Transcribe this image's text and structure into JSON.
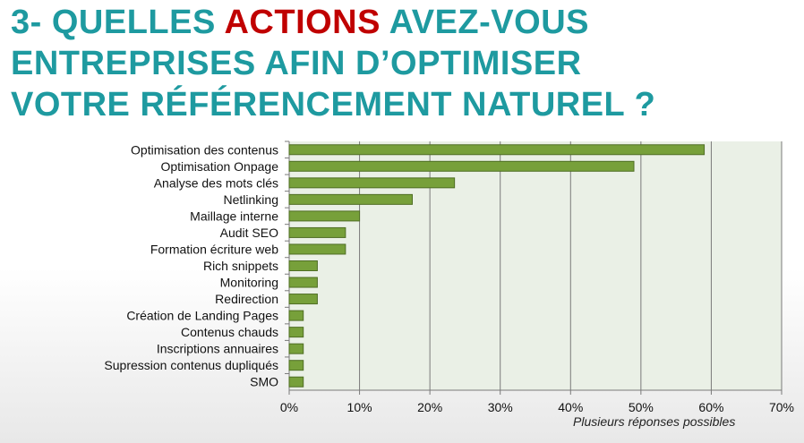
{
  "title": {
    "part1": "3- QUELLES ",
    "accent": "ACTIONS",
    "part2": " AVEZ-VOUS",
    "line2": "ENTREPRISES AFIN D’OPTIMISER",
    "line3": "VOTRE RÉFÉRENCEMENT NATUREL ?"
  },
  "note": "Plusieurs réponses possibles",
  "colors": {
    "title": "#1e9aa0",
    "accent": "#c00000",
    "bar_fill": "#77a03a",
    "bar_stroke": "#4f6e24",
    "plot_bg": "#eaf0e6"
  },
  "chart_data": {
    "type": "bar",
    "orientation": "horizontal",
    "categories": [
      "Optimisation des contenus",
      "Optimisation Onpage",
      "Analyse des mots clés",
      "Netlinking",
      "Maillage interne",
      "Audit SEO",
      "Formation écriture web",
      "Rich snippets",
      "Monitoring",
      "Redirection",
      "Création de Landing Pages",
      "Contenus chauds",
      "Inscriptions annuaires",
      "Supression contenus dupliqués",
      "SMO"
    ],
    "values": [
      59,
      49,
      23.5,
      17.5,
      10,
      8,
      8,
      4,
      4,
      4,
      2,
      2,
      2,
      2,
      2
    ],
    "xlim": [
      0,
      70
    ],
    "ticks": [
      0,
      10,
      20,
      30,
      40,
      50,
      60,
      70
    ],
    "tick_labels": [
      "0%",
      "10%",
      "20%",
      "30%",
      "40%",
      "50%",
      "60%",
      "70%"
    ],
    "grid": true
  }
}
